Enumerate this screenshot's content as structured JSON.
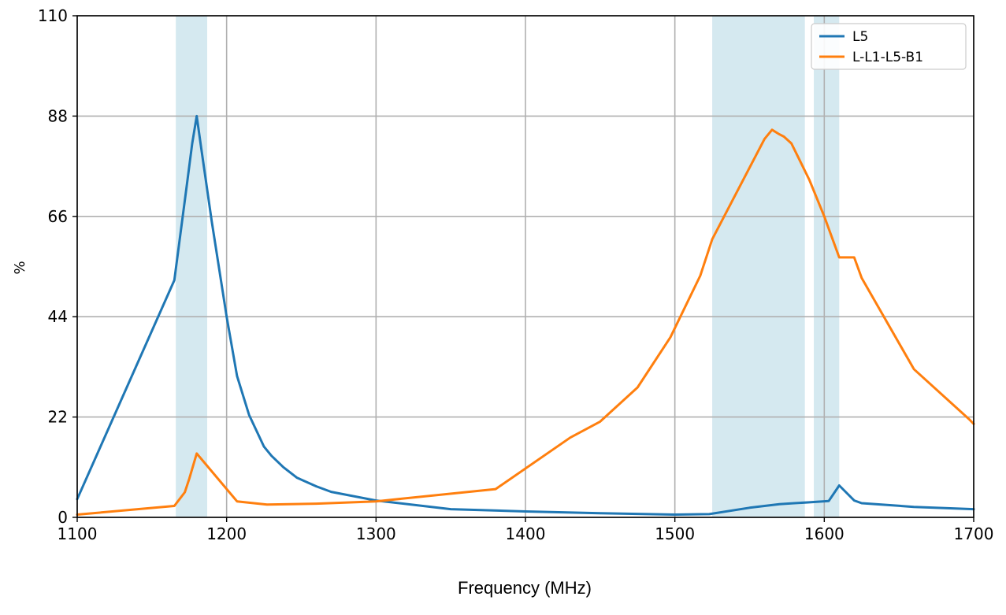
{
  "chart_data": {
    "type": "line",
    "xlabel": "Frequency (MHz)",
    "ylabel": "%",
    "xlim": [
      1100,
      1700
    ],
    "ylim": [
      0,
      110
    ],
    "xticks": [
      1100,
      1200,
      1300,
      1400,
      1500,
      1600,
      1700
    ],
    "yticks": [
      0,
      22,
      44,
      66,
      88,
      110
    ],
    "grid": true,
    "legend_position": "top-right",
    "bands": [
      {
        "from": 1166,
        "to": 1187,
        "color": "#d5e9f0"
      },
      {
        "from": 1525,
        "to": 1587,
        "color": "#d5e9f0"
      },
      {
        "from": 1593,
        "to": 1610,
        "color": "#d5e9f0"
      }
    ],
    "series": [
      {
        "name": "L5",
        "color": "#1f77b4",
        "x": [
          1100,
          1165,
          1173,
          1177,
          1179,
          1180,
          1183,
          1190,
          1200,
          1207,
          1215,
          1225,
          1230,
          1238,
          1247,
          1260,
          1270,
          1300,
          1350,
          1400,
          1450,
          1500,
          1523,
          1550,
          1570,
          1580,
          1590,
          1603,
          1610,
          1620,
          1625,
          1660,
          1700
        ],
        "y": [
          4,
          52,
          72,
          82,
          86,
          88,
          81,
          65,
          44,
          31,
          22.5,
          15.5,
          13.5,
          11,
          8.7,
          6.8,
          5.6,
          3.7,
          1.8,
          1.3,
          0.9,
          0.6,
          0.7,
          2.1,
          2.9,
          3.1,
          3.3,
          3.6,
          7,
          3.7,
          3.1,
          2.3,
          1.8
        ]
      },
      {
        "name": "L-L1-L5-B1",
        "color": "#ff7f0e",
        "x": [
          1100,
          1165,
          1172,
          1175,
          1180,
          1207,
          1227,
          1260,
          1300,
          1380,
          1430,
          1450,
          1475,
          1497,
          1517,
          1525,
          1560,
          1565,
          1570,
          1573,
          1578,
          1590,
          1600,
          1610,
          1620,
          1625,
          1660,
          1697,
          1700
        ],
        "y": [
          0.6,
          2.5,
          5.5,
          8.5,
          14,
          3.5,
          2.8,
          3,
          3.5,
          6.2,
          17.5,
          21,
          28.5,
          39.5,
          53,
          61,
          83,
          85,
          84,
          83.5,
          82,
          74,
          66,
          57,
          57,
          52.5,
          32.5,
          21.5,
          20.5
        ]
      }
    ]
  }
}
